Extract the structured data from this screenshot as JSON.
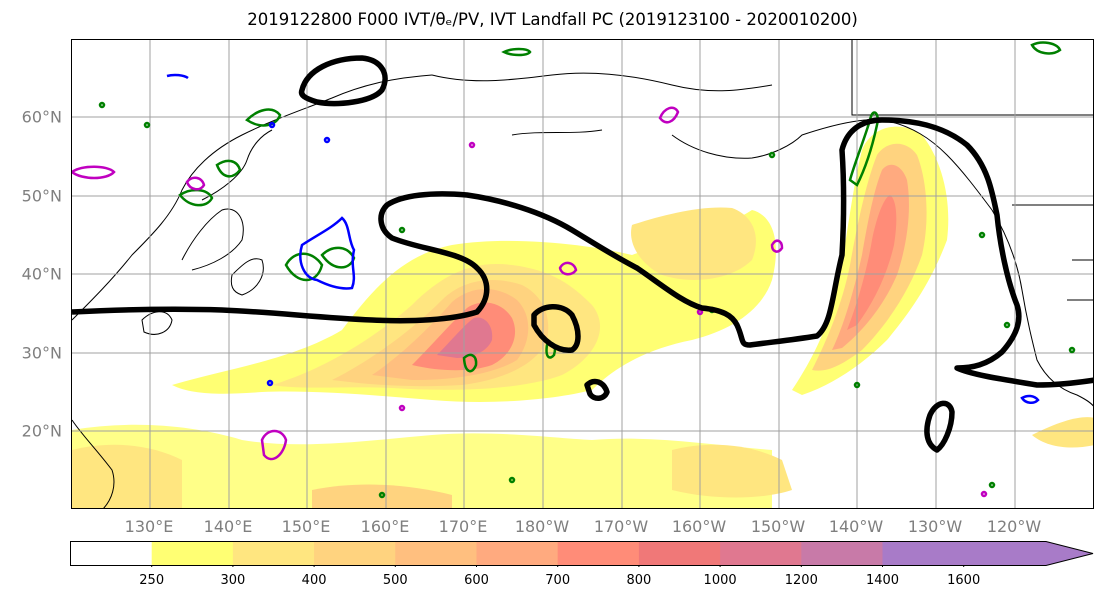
{
  "title": "2019122800 F000 IVT/θₑ/PV, IVT Landfall PC (2019123100 - 2020010200)",
  "map": {
    "lat_labels": [
      "60°N",
      "50°N",
      "40°N",
      "30°N",
      "20°N"
    ],
    "lon_labels": [
      "130°E",
      "140°E",
      "150°E",
      "160°E",
      "170°E",
      "180°W",
      "170°W",
      "160°W",
      "150°W",
      "140°W",
      "130°W",
      "120°W"
    ],
    "label_color": "#7f7f7f",
    "gridlines": true
  },
  "colorbar": {
    "ticks": [
      "250",
      "300",
      "400",
      "500",
      "600",
      "700",
      "800",
      "1000",
      "1200",
      "1400",
      "1600"
    ],
    "colors": [
      "#ffffff",
      "#ffff73",
      "#ffe680",
      "#ffd37f",
      "#ffbf7f",
      "#ffaa7f",
      "#ff8c78",
      "#f07878",
      "#e07890",
      "#c87aa8",
      "#a87bc8"
    ],
    "extend": "max"
  },
  "contour_colors": {
    "ivt_landfall_pc": "#000000",
    "theta_e": "#008000",
    "pv_magenta": "#c000c0",
    "pv_blue": "#0000ff"
  }
}
